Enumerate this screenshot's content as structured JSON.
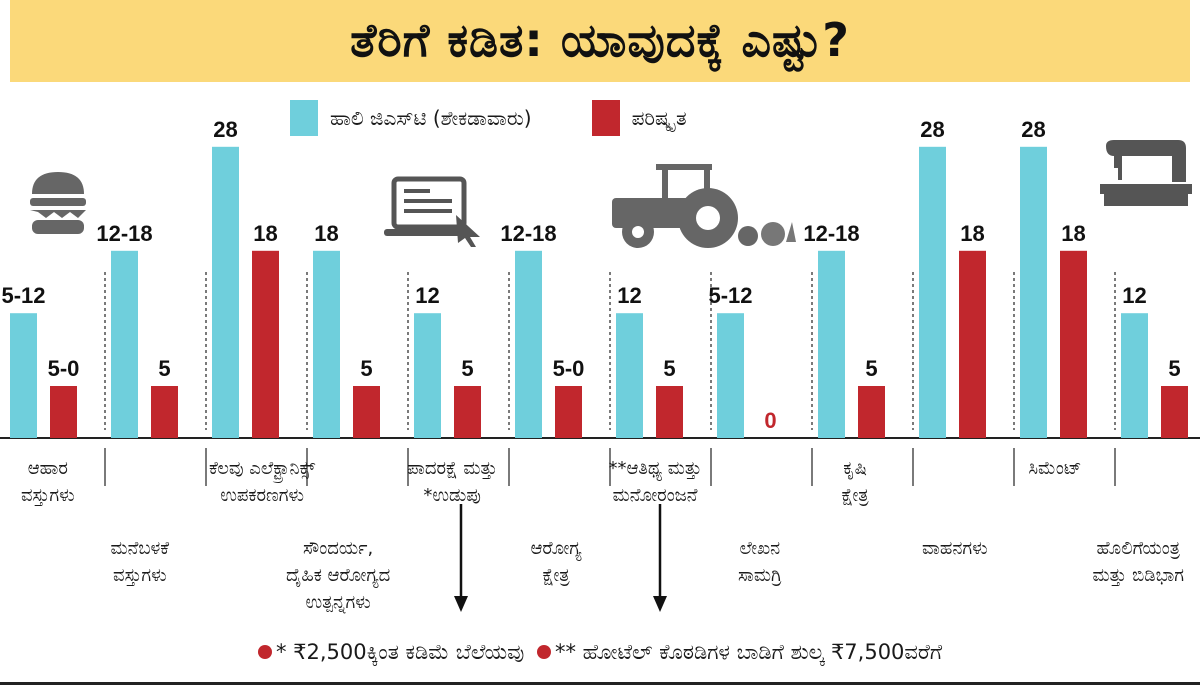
{
  "title": "ತೆರಿಗೆ ಕಡಿತ: ಯಾವುದಕ್ಕೆ ಎಷ್ಟು?",
  "colors": {
    "old": "#6fcfdc",
    "new": "#c1272d",
    "band": "#fbd97a"
  },
  "icons": [
    "burger-icon",
    "laptop-icon",
    "tractor-icon",
    "sewing-machine-icon"
  ],
  "legend": {
    "old": "ಹಾಲಿ ಜಿಎಸ್‌ಟಿ (ಶೇಕಡಾವಾರು)",
    "new": "ಪರಿಷ್ಕೃತ"
  },
  "footnotes": [
    "* ₹2,500ಕ್ಕಿಂತ ಕಡಿಮೆ ಬೆಲೆಯವು",
    "** ಹೋಟೆಲ್ ಕೊಠಡಿಗಳ ಬಾಡಿಗೆ ಶುಲ್ಕ ₹7,500ವರೆಗೆ"
  ],
  "chart_data": {
    "type": "bar",
    "series": [
      {
        "name": "ಹಾಲಿ ಜಿಎಸ್‌ಟಿ (ಶೇಕಡಾವಾರು)",
        "values": [
          12,
          18,
          28,
          18,
          12,
          18,
          12,
          12,
          18,
          28,
          28,
          12
        ],
        "labels": [
          "5-12",
          "12-18",
          "28",
          "18",
          "12",
          "12-18",
          "12",
          "5-12",
          "12-18",
          "28",
          "28",
          "12"
        ]
      },
      {
        "name": "ಪರಿಷ್ಕೃತ",
        "values": [
          5,
          5,
          18,
          5,
          5,
          5,
          5,
          0,
          5,
          18,
          18,
          5
        ],
        "labels": [
          "5-0",
          "5",
          "18",
          "5",
          "5",
          "5-0",
          "5",
          "0",
          "5",
          "18",
          "18",
          "5"
        ]
      }
    ],
    "categories": [
      [
        "ಆಹಾರ",
        "ವಸ್ತುಗಳು"
      ],
      [
        "ಮನೆಬಳಕೆ",
        "ವಸ್ತುಗಳು"
      ],
      [
        "ಕೆಲವು ಎಲೆಕ್ಟ್ರಾನಿಕ್ಸ್",
        "ಉಪಕರಣಗಳು"
      ],
      [
        "ಸೌಂದರ್ಯ,",
        "ದೈಹಿಕ ಆರೋಗ್ಯದ",
        "ಉತ್ಪನ್ನಗಳು"
      ],
      [
        "ಪಾದರಕ್ಷೆ ಮತ್ತು",
        "*ಉಡುಪು"
      ],
      [
        "ಆರೋಗ್ಯ",
        "ಕ್ಷೇತ್ರ"
      ],
      [
        "**ಆತಿಥ್ಯ ಮತ್ತು",
        "ಮನೋರಂಜನೆ"
      ],
      [
        "ಲೇಖನ",
        "ಸಾಮಗ್ರಿ"
      ],
      [
        "ಕೃಷಿ",
        "ಕ್ಷೇತ್ರ"
      ],
      [
        "ವಾಹನಗಳು"
      ],
      [
        "ಸಿಮೆಂಟ್"
      ],
      [
        "ಹೊಲಿಗೆಯಂತ್ರ",
        "ಮತ್ತು ಬಿಡಿಭಾಗ"
      ]
    ],
    "ylim": [
      0,
      30
    ],
    "grid": false,
    "legend_position": "top"
  }
}
